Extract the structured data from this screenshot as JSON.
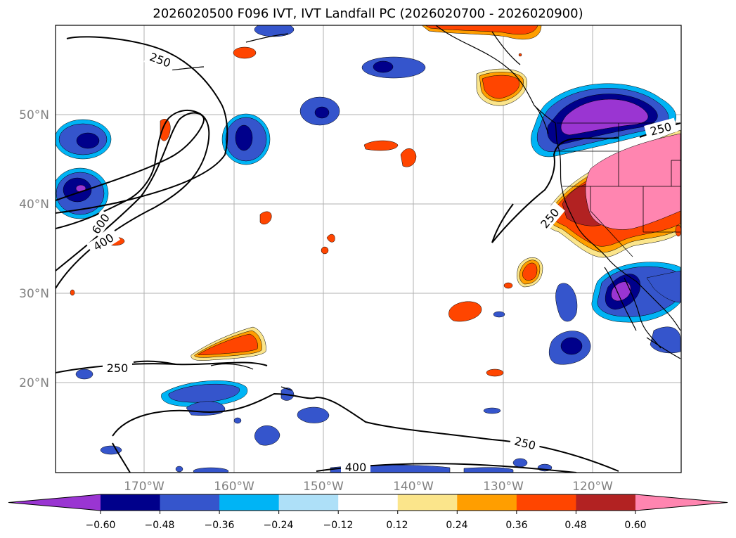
{
  "title": "2026020500 F096 IVT, IVT Landfall PC (2026020700 - 2026020900)",
  "lat_labels": [
    "50°N",
    "40°N",
    "30°N",
    "20°N"
  ],
  "lon_labels": [
    "170°W",
    "160°W",
    "150°W",
    "140°W",
    "130°W",
    "120°W"
  ],
  "contour_labels": [
    "250",
    "600",
    "400",
    "250",
    "250",
    "250",
    "400",
    "250"
  ],
  "colorbar": {
    "ticks": [
      "−0.60",
      "−0.48",
      "−0.36",
      "−0.24",
      "−0.12",
      "0.12",
      "0.24",
      "0.36",
      "0.48",
      "0.60"
    ],
    "colors": [
      "#9a35d2",
      "#00008b",
      "#3555cc",
      "#00b4f5",
      "#aee0f8",
      "#ffffff",
      "#fbe58b",
      "#ff9e00",
      "#ff4500",
      "#b22222",
      "#ff85b0"
    ]
  }
}
